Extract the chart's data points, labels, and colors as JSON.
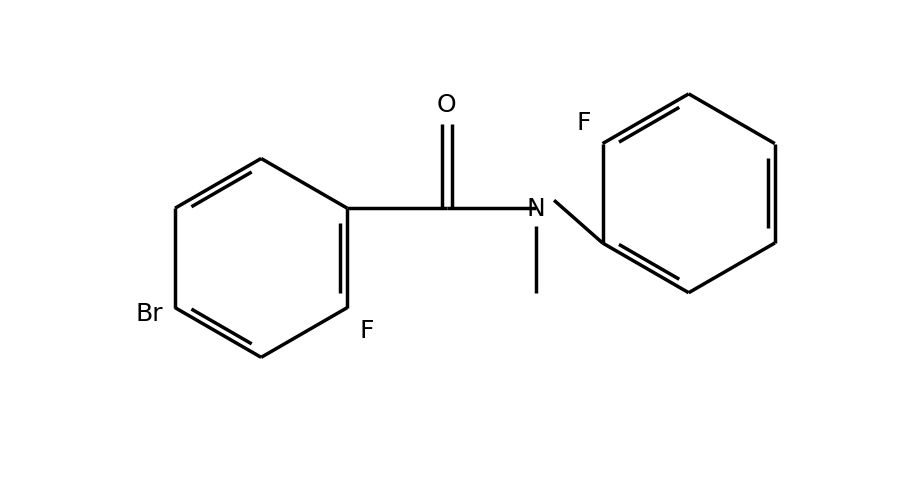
{
  "background_color": "#ffffff",
  "line_color": "#000000",
  "line_width": 2.5,
  "font_size": 18,
  "figsize": [
    9.2,
    4.89
  ],
  "dpi": 100,
  "xlim": [
    0,
    9.2
  ],
  "ylim": [
    0,
    4.89
  ]
}
